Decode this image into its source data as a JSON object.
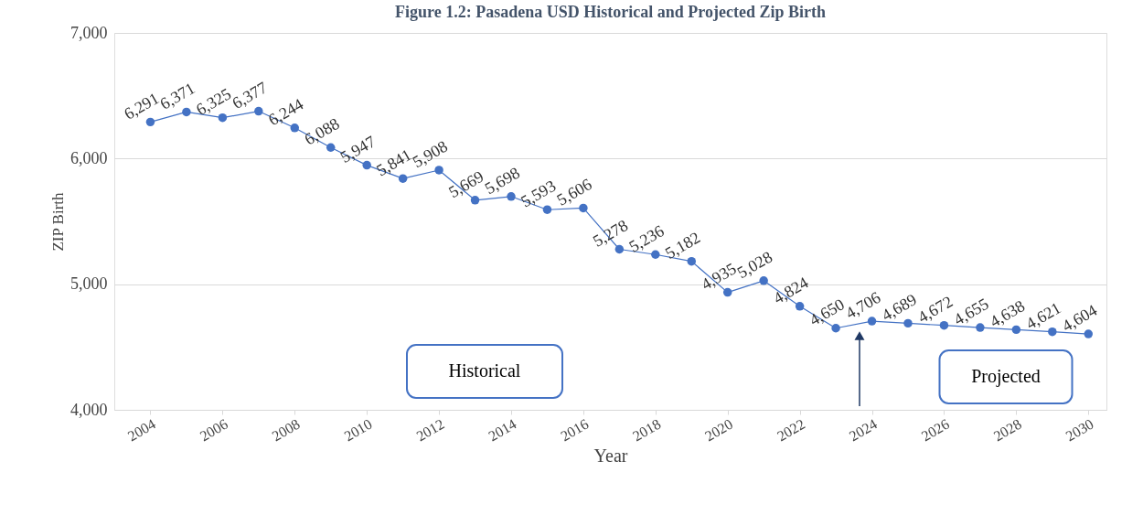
{
  "chart_data": {
    "type": "line",
    "title": "Figure 1.2: Pasadena USD Historical and Projected Zip Birth",
    "xlabel": "Year",
    "ylabel": "ZIP Birth",
    "x": [
      2004,
      2005,
      2006,
      2007,
      2008,
      2009,
      2010,
      2011,
      2012,
      2013,
      2014,
      2015,
      2016,
      2017,
      2018,
      2019,
      2020,
      2021,
      2022,
      2023,
      2024,
      2025,
      2026,
      2027,
      2028,
      2029,
      2030
    ],
    "series": [
      {
        "color": "#4472c4",
        "values": [
          6291,
          6371,
          6325,
          6377,
          6244,
          6088,
          5947,
          5841,
          5908,
          5669,
          5698,
          5593,
          5606,
          5278,
          5236,
          5182,
          4935,
          5028,
          4824,
          4650,
          4706,
          4689,
          4672,
          4655,
          4638,
          4621,
          4604
        ]
      }
    ],
    "xlim": [
      2003,
      2030.5
    ],
    "xticks": [
      2004,
      2006,
      2008,
      2010,
      2012,
      2014,
      2016,
      2018,
      2020,
      2022,
      2024,
      2026,
      2028,
      2030
    ],
    "ylim": [
      4000,
      7000
    ],
    "yticks": [
      {
        "value": 4000,
        "label": "4,000"
      },
      {
        "value": 5000,
        "label": "5,000"
      },
      {
        "value": 6000,
        "label": "6,000"
      },
      {
        "value": 7000,
        "label": "7,000"
      }
    ],
    "value_labels": [
      "6,291",
      "6,371",
      "6,325",
      "6,377",
      "6,244",
      "6,088",
      "5,947",
      "5,841",
      "5,908",
      "5,669",
      "5,698",
      "5,593",
      "5,606",
      "5,278",
      "5,236",
      "5,182",
      "4,935",
      "5,028",
      "4,824",
      "4,650",
      "4,706",
      "4,689",
      "4,672",
      "4,655",
      "4,638",
      "4,621",
      "4,604"
    ],
    "grid": "y",
    "marker": "circle",
    "line_style": "solid",
    "annotations": [
      "Historical",
      "Projected"
    ]
  }
}
